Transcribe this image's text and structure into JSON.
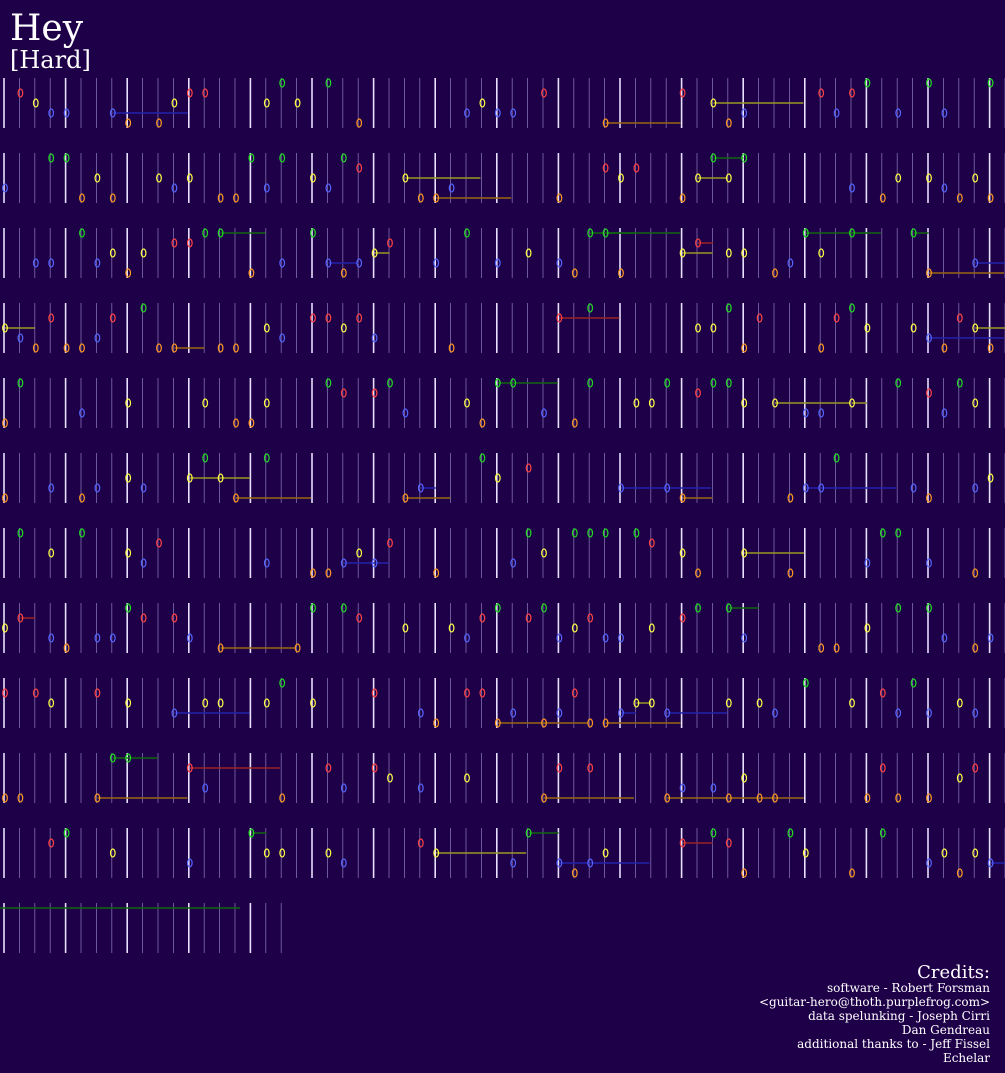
{
  "header": {
    "title": "Hey",
    "difficulty": "[Hard]"
  },
  "credits": {
    "heading": "Credits:",
    "lines": [
      "software - Robert Forsman",
      "<guitar-hero@thoth.purplefrog.com>",
      "data spelunking - Joseph Cirri",
      "Dan Gendreau",
      "additional thanks to - Jeff Fissel",
      "Echelar"
    ]
  }
}
